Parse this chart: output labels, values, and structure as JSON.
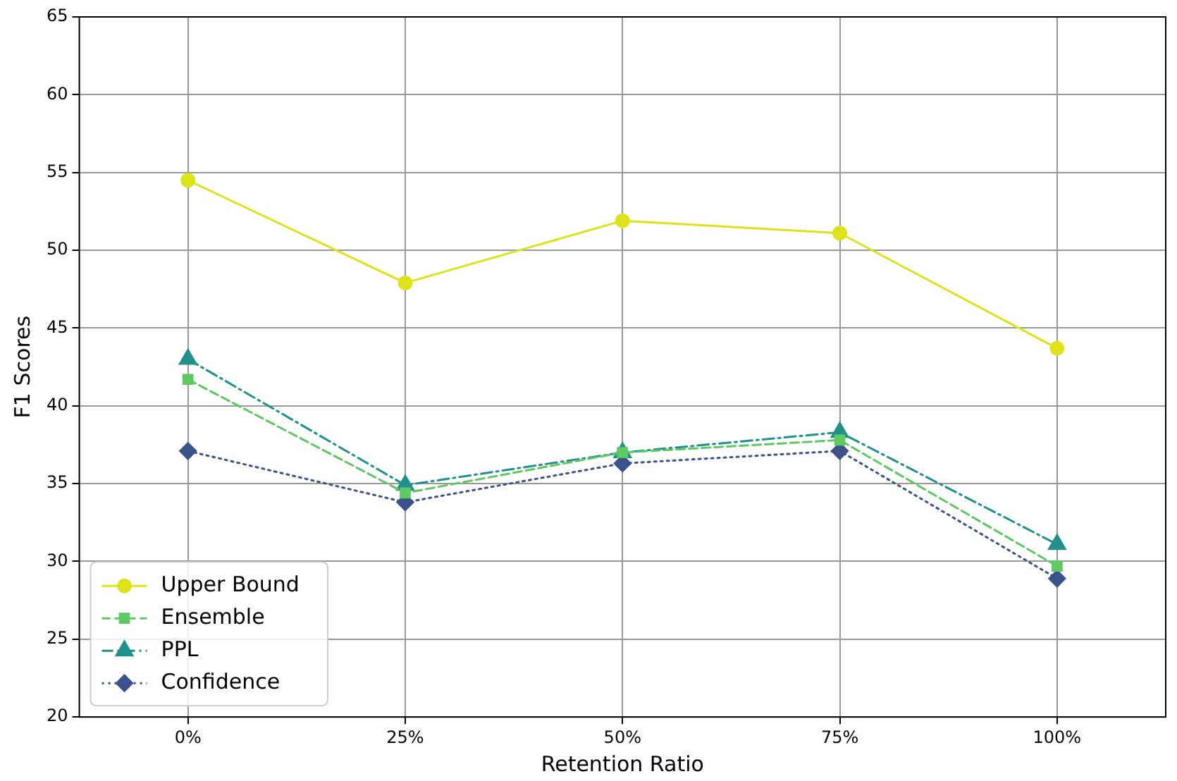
{
  "chart_data": {
    "type": "line",
    "xlabel": "Retention Ratio",
    "ylabel": "F1 Scores",
    "categories": [
      "0%",
      "25%",
      "50%",
      "75%",
      "100%"
    ],
    "series": [
      {
        "name": "Upper Bound",
        "color": "#dde318",
        "marker": "circle",
        "line_style": "solid",
        "values": [
          54.5,
          47.9,
          51.9,
          51.1,
          43.7
        ]
      },
      {
        "name": "Ensemble",
        "color": "#5ec962",
        "marker": "square",
        "line_style": "dashed",
        "values": [
          41.7,
          34.4,
          37.0,
          37.8,
          29.7
        ]
      },
      {
        "name": "PPL",
        "color": "#21918c",
        "marker": "triangle",
        "line_style": "dashdot",
        "values": [
          43.0,
          34.9,
          37.0,
          38.3,
          31.1
        ]
      },
      {
        "name": "Confidence",
        "color": "#3b528b",
        "marker": "diamond",
        "line_style": "dotted",
        "values": [
          37.1,
          33.8,
          36.3,
          37.1,
          28.9
        ]
      }
    ],
    "ylim": [
      20,
      65
    ],
    "yticks": [
      20,
      25,
      30,
      35,
      40,
      45,
      50,
      55,
      60,
      65
    ],
    "grid": true,
    "legend": "bottom left"
  }
}
